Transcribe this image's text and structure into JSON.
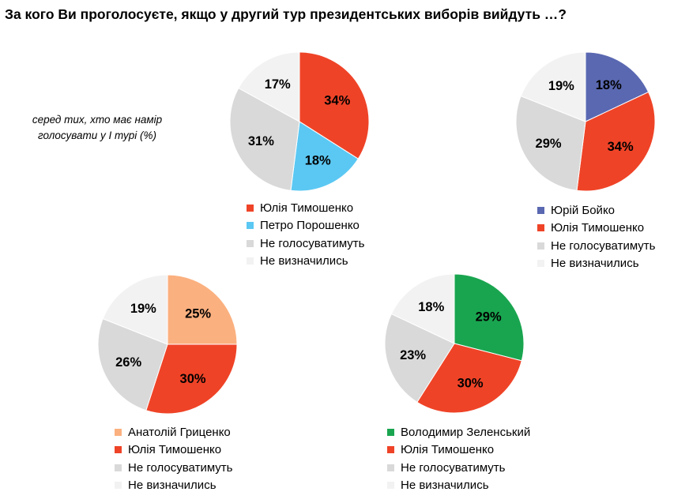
{
  "title": "За кого Ви проголосуєте, якщо у другий тур президентських виборів вийдуть …?",
  "note": "серед тих, хто має намір голосувати у І турі (%)",
  "colors": {
    "tymoshenko": "#ef4327",
    "poroshenko": "#5bc8f3",
    "boyko": "#5a68b1",
    "hrytsenko": "#fbb07f",
    "zelensky": "#19a54f",
    "not_vote": "#d9d9d9",
    "undecided": "#f2f2f2"
  },
  "chart_data": [
    {
      "type": "pie",
      "slices": [
        {
          "label": "Юлія Тимошенко",
          "value": 34,
          "color": "#ef4327",
          "text": "34%"
        },
        {
          "label": "Петро Порошенко",
          "value": 18,
          "color": "#5bc8f3",
          "text": "18%"
        },
        {
          "label": "Не голосуватимуть",
          "value": 31,
          "color": "#d9d9d9",
          "text": "31%"
        },
        {
          "label": "Не визначились",
          "value": 17,
          "color": "#f2f2f2",
          "text": "17%"
        }
      ]
    },
    {
      "type": "pie",
      "slices": [
        {
          "label": "Юрій Бойко",
          "value": 18,
          "color": "#5a68b1",
          "text": "18%"
        },
        {
          "label": "Юлія Тимошенко",
          "value": 34,
          "color": "#ef4327",
          "text": "34%"
        },
        {
          "label": "Не голосуватимуть",
          "value": 29,
          "color": "#d9d9d9",
          "text": "29%"
        },
        {
          "label": "Не визначились",
          "value": 19,
          "color": "#f2f2f2",
          "text": "19%"
        }
      ]
    },
    {
      "type": "pie",
      "slices": [
        {
          "label": "Анатолій Гриценко",
          "value": 25,
          "color": "#fbb07f",
          "text": "25%"
        },
        {
          "label": "Юлія Тимошенко",
          "value": 30,
          "color": "#ef4327",
          "text": "30%"
        },
        {
          "label": "Не голосуватимуть",
          "value": 26,
          "color": "#d9d9d9",
          "text": "26%"
        },
        {
          "label": "Не визначились",
          "value": 19,
          "color": "#f2f2f2",
          "text": "19%"
        }
      ]
    },
    {
      "type": "pie",
      "slices": [
        {
          "label": "Володимир Зеленський",
          "value": 29,
          "color": "#19a54f",
          "text": "29%"
        },
        {
          "label": "Юлія Тимошенко",
          "value": 30,
          "color": "#ef4327",
          "text": "30%"
        },
        {
          "label": "Не голосуватимуть",
          "value": 23,
          "color": "#d9d9d9",
          "text": "23%"
        },
        {
          "label": "Не визначились",
          "value": 18,
          "color": "#f2f2f2",
          "text": "18%"
        }
      ]
    }
  ]
}
